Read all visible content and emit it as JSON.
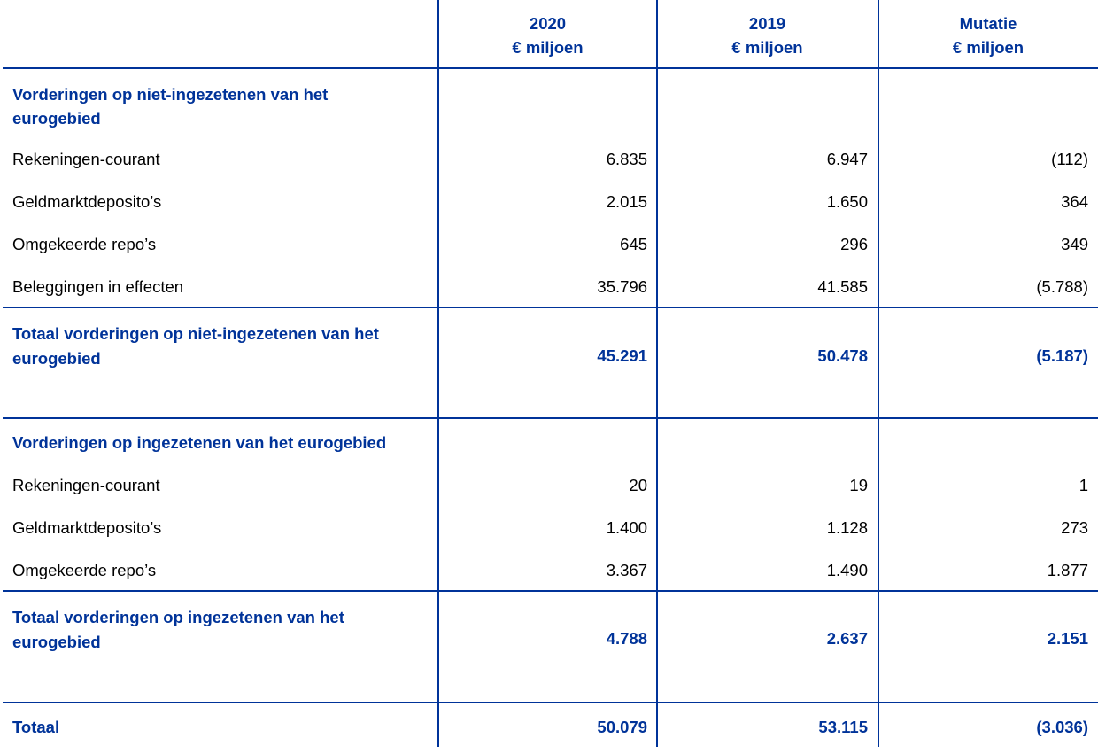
{
  "header": {
    "columns": [
      {
        "year": "2020",
        "unit": "€ miljoen"
      },
      {
        "year": "2019",
        "unit": "€ miljoen"
      },
      {
        "year": "Mutatie",
        "unit": "€ miljoen"
      }
    ]
  },
  "section1": {
    "title_line1": "Vorderingen op niet-ingezetenen van het",
    "title_line2": "eurogebied",
    "rows": [
      {
        "label": "Rekeningen-courant",
        "v2020": "6.835",
        "v2019": "6.947",
        "mutatie": "(112)"
      },
      {
        "label": "Geldmarktdeposito’s",
        "v2020": "2.015",
        "v2019": "1.650",
        "mutatie": "364"
      },
      {
        "label": "Omgekeerde repo’s",
        "v2020": "645",
        "v2019": "296",
        "mutatie": "349"
      },
      {
        "label": "Beleggingen in effecten",
        "v2020": "35.796",
        "v2019": "41.585",
        "mutatie": "(5.788)"
      }
    ],
    "total": {
      "label_line1": "Totaal vorderingen op niet-ingezetenen van het",
      "label_line2": "eurogebied",
      "v2020": "45.291",
      "v2019": "50.478",
      "mutatie": "(5.187)"
    }
  },
  "section2": {
    "title": "Vorderingen op ingezetenen van het eurogebied",
    "rows": [
      {
        "label": "Rekeningen-courant",
        "v2020": "20",
        "v2019": "19",
        "mutatie": "1"
      },
      {
        "label": "Geldmarktdeposito’s",
        "v2020": "1.400",
        "v2019": "1.128",
        "mutatie": "273"
      },
      {
        "label": "Omgekeerde repo’s",
        "v2020": "3.367",
        "v2019": "1.490",
        "mutatie": "1.877"
      }
    ],
    "total": {
      "label_line1": "Totaal vorderingen op ingezetenen van het",
      "label_line2": "eurogebied",
      "v2020": "4.788",
      "v2019": "2.637",
      "mutatie": "2.151"
    }
  },
  "grand_total": {
    "label": "Totaal",
    "v2020": "50.079",
    "v2019": "53.115",
    "mutatie": "(3.036)"
  },
  "colors": {
    "accent": "#003399"
  }
}
